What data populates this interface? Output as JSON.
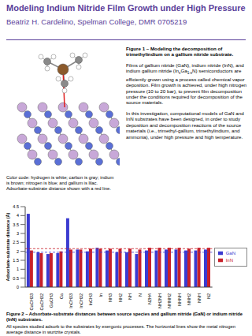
{
  "header": {
    "title": "Modeling Indium Nitride Film Growth under High Pressure",
    "subtitle": "Beatriz H. Cardelino, Spelman College, DMR 0705219"
  },
  "figure1": {
    "caption_title": "Figure 1 – Modeling the decomposition of trimethylindium on a gallium nitride substrate.",
    "paragraphs": [
      [
        {
          "t": "Films of gallium nitride (GaN), indium nitride (InN), and indium gallium nitride (In"
        },
        {
          "t": "x",
          "sub": true
        },
        {
          "t": "Ga"
        },
        {
          "t": "1-x",
          "sub": true
        },
        {
          "t": "N) semiconductors are efficiently grown using a process called chemical vapor deposition.  Film growth is achieved, under high nitrogen pressure (10 to 20 bar), to prevent film decomposition under the conditions required for decomposition of the source materials."
        }
      ],
      [
        {
          "t": "In this investigation, computational models of GaN and InN substrates have been designed, in order to study deposition and decomposition reactions of the source materials  (i.e., trimethyl-gallium, trimethylindium, and ammonia), under high pressure and high temperature."
        }
      ]
    ],
    "color_code": "Color code:  hydrogen is white; carbon is gray; indium is brown; nitrogen is blue; and gallium is lilac.  Adsorbate-substrate distance shown with a red line."
  },
  "chart_data": {
    "type": "bar",
    "y_label": "Adsorbate-substrate distance (Å)",
    "categories": [
      "GaCH33",
      "GaCH32",
      "GaCH3",
      "Ga",
      "InCH33",
      "InCH32",
      "InCH3",
      "In",
      "NH3",
      "NH2",
      "NH",
      "N",
      "N2H4",
      "NH2NH",
      "NHNH2",
      "NHNH",
      "NNH2",
      "NNH",
      "N2"
    ],
    "series": [
      {
        "name": "GaN",
        "color": "#3b3bd0",
        "values": [
          4.1,
          1.95,
          1.85,
          1.9,
          3.85,
          2.1,
          2.0,
          2.2,
          2.05,
          1.95,
          1.95,
          1.85,
          2.05,
          2.05,
          2.1,
          2.1,
          2.05,
          2.05,
          2.1
        ]
      },
      {
        "name": "InN",
        "color": "#c8202a",
        "values": [
          2.05,
          1.9,
          1.9,
          2.0,
          2.1,
          2.1,
          2.15,
          2.15,
          2.15,
          2.15,
          2.15,
          2.1,
          2.2,
          2.2,
          2.2,
          2.2,
          2.15,
          2.2,
          2.2
        ]
      }
    ],
    "reference_lines": [
      {
        "series": "GaN",
        "value": 1.95
      },
      {
        "series": "InN",
        "value": 2.15
      }
    ],
    "ylim": [
      0,
      4.5
    ],
    "yticks": [
      0,
      0.5,
      1,
      1.5,
      2,
      2.5,
      3,
      3.5,
      4,
      4.5
    ],
    "legend": "right",
    "grid": false
  },
  "figure2": {
    "caption_title": "Figure 2 – Adsorbate-substrate distances between source species and gallium nitride (GaN) or indium nitride (InN) substrates.",
    "text": "All species studied adsorb to the substrates by exergonic processes.  The horizontal lines show the metal nitrogen average distance in  wurtzite crystals."
  }
}
